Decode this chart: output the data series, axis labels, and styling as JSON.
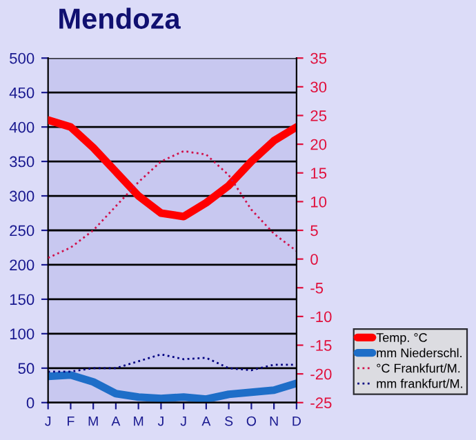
{
  "chart_data": {
    "type": "line",
    "title": "Mendoza",
    "categories": [
      "J",
      "F",
      "M",
      "A",
      "M",
      "J",
      "J",
      "A",
      "S",
      "O",
      "N",
      "D"
    ],
    "series": [
      {
        "name": "Temp. °C",
        "color": "#ff0000",
        "axis": "y2",
        "line_style": "solid",
        "values": [
          24.2,
          23,
          19.4,
          15.2,
          11,
          8,
          7.4,
          9.8,
          12.8,
          17,
          20.6,
          23
        ]
      },
      {
        "name": "mm Niederschl.",
        "color": "#1e6ec8",
        "line_style": "solid",
        "values": [
          38,
          40,
          30,
          13,
          8,
          6,
          8,
          5,
          12,
          15,
          18,
          28
        ]
      },
      {
        "name": "°C Frankfurt/M.",
        "color": "#d0104a",
        "axis": "y2",
        "line_style": "dotted",
        "values": [
          0.2,
          2,
          5,
          9.2,
          13.4,
          17,
          18.8,
          18.2,
          14.6,
          8.6,
          4.4,
          1.4
        ]
      },
      {
        "name": "mm frankfurt/M.",
        "color": "#000080",
        "line_style": "dotted",
        "values": [
          45,
          45,
          50,
          50,
          60,
          70,
          63,
          65,
          50,
          47,
          55,
          55
        ]
      }
    ],
    "ylim": [
      0,
      500
    ],
    "yticks": [
      0,
      50,
      100,
      150,
      200,
      250,
      300,
      350,
      400,
      450,
      500
    ],
    "y2lim": [
      -25,
      35
    ],
    "y2ticks": [
      -25,
      -20,
      -15,
      -10,
      -5,
      0,
      5,
      10,
      15,
      20,
      25,
      30,
      35
    ],
    "grid": "y",
    "legend": "bottom right",
    "marker": "none"
  }
}
